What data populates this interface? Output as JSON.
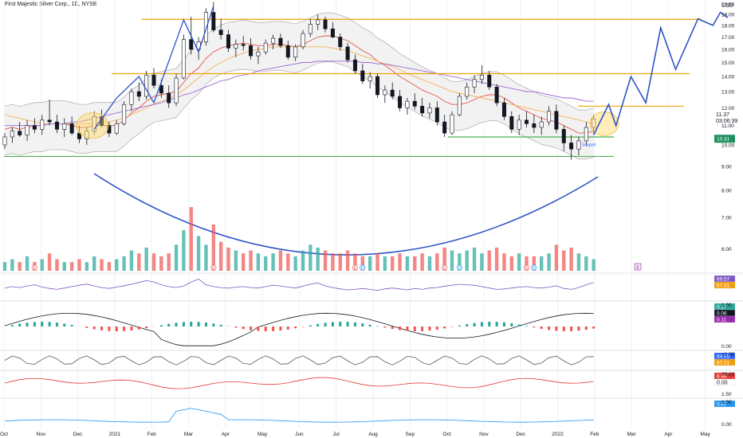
{
  "header": {
    "title": "First Majestic Silver Corp., 1D, NYSE",
    "currency": "USD"
  },
  "colors": {
    "up": "#26a69a",
    "down": "#ef5350",
    "orange": "#f0a30a",
    "green": "#4caf50",
    "blue": "#2e55c6",
    "purple": "#9c6ad6",
    "red_ma": "#e2574c",
    "orange_ma": "#f5b25c",
    "band": "#b5b5b5",
    "axis_text": "#131722",
    "cyan": "#2196f3"
  },
  "chart_data": {
    "type": "candlestick",
    "months": [
      "Oct",
      "Nov",
      "Dec",
      "2021",
      "Feb",
      "Mar",
      "Apr",
      "May",
      "Jun",
      "Jul",
      "Aug",
      "Sep",
      "Oct",
      "Nov",
      "Dec",
      "2022",
      "Feb",
      "Mar",
      "Apr",
      "May"
    ],
    "price_axis": {
      "ticks": [
        "20.00",
        "19.00",
        "18.00",
        "17.00",
        "16.00",
        "15.00",
        "14.00",
        "13.00",
        "12.00",
        "11.00",
        "10.00",
        "9.00",
        "8.00",
        "7.00",
        "6.00"
      ],
      "ylim": [
        5.6,
        20.4
      ],
      "scale": "log"
    },
    "key_levels": {
      "resistance_high": 18.55,
      "resistance_mid": 14.2,
      "resistance_low": 12.1,
      "support_upper": 10.4,
      "support_lower": 9.45
    },
    "price_tags": [
      {
        "label": "11.37",
        "sub": "03:06:39",
        "kind": "last"
      },
      {
        "label": "10.31",
        "kind": "green"
      }
    ],
    "candles": [
      [
        10.0,
        10.6,
        9.8,
        10.4
      ],
      [
        10.4,
        10.9,
        10.1,
        10.7
      ],
      [
        10.7,
        11.2,
        10.4,
        10.5
      ],
      [
        10.5,
        11.3,
        10.2,
        11.0
      ],
      [
        11.0,
        11.4,
        10.6,
        10.8
      ],
      [
        10.8,
        11.6,
        10.5,
        11.3
      ],
      [
        11.3,
        12.5,
        11.0,
        11.2
      ],
      [
        11.2,
        11.6,
        10.6,
        10.8
      ],
      [
        10.8,
        11.4,
        10.4,
        11.1
      ],
      [
        11.1,
        11.5,
        10.5,
        10.6
      ],
      [
        10.6,
        11.0,
        10.1,
        10.3
      ],
      [
        10.3,
        10.9,
        10.0,
        10.7
      ],
      [
        10.7,
        11.8,
        10.5,
        11.5
      ],
      [
        11.5,
        11.9,
        10.9,
        11.0
      ],
      [
        11.0,
        11.2,
        10.4,
        10.6
      ],
      [
        10.6,
        11.3,
        10.5,
        11.1
      ],
      [
        11.1,
        12.4,
        11.0,
        12.2
      ],
      [
        12.2,
        13.2,
        11.8,
        13.0
      ],
      [
        13.0,
        13.6,
        12.4,
        12.7
      ],
      [
        12.7,
        14.4,
        12.5,
        14.1
      ],
      [
        14.1,
        14.6,
        13.2,
        13.4
      ],
      [
        13.4,
        13.8,
        12.6,
        12.9
      ],
      [
        12.9,
        13.4,
        12.0,
        12.3
      ],
      [
        12.3,
        14.2,
        12.1,
        13.9
      ],
      [
        13.9,
        17.2,
        13.8,
        16.8
      ],
      [
        16.8,
        18.8,
        15.6,
        16.0
      ],
      [
        16.0,
        17.0,
        15.2,
        16.6
      ],
      [
        16.6,
        19.6,
        16.3,
        19.2
      ],
      [
        19.2,
        20.2,
        17.4,
        17.6
      ],
      [
        17.6,
        18.6,
        16.8,
        17.2
      ],
      [
        17.2,
        17.6,
        15.8,
        16.1
      ],
      [
        16.1,
        16.8,
        15.4,
        16.4
      ],
      [
        16.4,
        17.1,
        15.9,
        16.3
      ],
      [
        16.3,
        16.9,
        15.2,
        15.5
      ],
      [
        15.5,
        16.2,
        14.9,
        15.8
      ],
      [
        15.8,
        16.8,
        15.6,
        16.5
      ],
      [
        16.5,
        17.2,
        16.0,
        16.9
      ],
      [
        16.9,
        17.3,
        16.1,
        16.3
      ],
      [
        16.3,
        16.7,
        15.2,
        15.4
      ],
      [
        15.4,
        16.4,
        15.1,
        16.2
      ],
      [
        16.2,
        17.6,
        16.0,
        17.3
      ],
      [
        17.3,
        18.6,
        17.0,
        18.1
      ],
      [
        18.1,
        19.0,
        17.6,
        18.5
      ],
      [
        18.5,
        18.8,
        17.4,
        17.7
      ],
      [
        17.7,
        18.3,
        16.9,
        17.0
      ],
      [
        17.0,
        17.3,
        15.9,
        16.2
      ],
      [
        16.2,
        16.5,
        15.0,
        15.2
      ],
      [
        15.2,
        15.6,
        14.2,
        14.4
      ],
      [
        14.4,
        14.9,
        13.5,
        13.7
      ],
      [
        13.7,
        14.3,
        13.2,
        14.0
      ],
      [
        14.0,
        14.2,
        12.6,
        12.8
      ],
      [
        12.8,
        13.4,
        12.3,
        13.1
      ],
      [
        13.1,
        13.6,
        12.5,
        12.7
      ],
      [
        12.7,
        13.1,
        11.8,
        12.0
      ],
      [
        12.0,
        12.6,
        11.6,
        12.4
      ],
      [
        12.4,
        12.9,
        11.9,
        12.1
      ],
      [
        12.1,
        12.6,
        11.5,
        11.7
      ],
      [
        11.7,
        12.3,
        11.4,
        12.0
      ],
      [
        12.0,
        12.4,
        11.0,
        11.2
      ],
      [
        11.2,
        11.6,
        10.4,
        10.6
      ],
      [
        10.6,
        11.8,
        10.5,
        11.6
      ],
      [
        11.6,
        12.9,
        11.5,
        12.7
      ],
      [
        12.7,
        13.6,
        12.5,
        13.3
      ],
      [
        13.3,
        14.1,
        12.9,
        13.8
      ],
      [
        13.8,
        14.8,
        13.5,
        14.1
      ],
      [
        14.1,
        14.4,
        13.1,
        13.3
      ],
      [
        13.3,
        13.5,
        12.1,
        12.3
      ],
      [
        12.3,
        12.6,
        11.3,
        11.5
      ],
      [
        11.5,
        11.8,
        10.6,
        10.8
      ],
      [
        10.8,
        11.6,
        10.5,
        11.3
      ],
      [
        11.3,
        11.8,
        10.9,
        11.1
      ],
      [
        11.1,
        11.6,
        10.6,
        10.9
      ],
      [
        10.9,
        11.5,
        10.5,
        11.2
      ],
      [
        11.2,
        12.1,
        11.0,
        11.8
      ],
      [
        11.8,
        12.2,
        10.6,
        10.8
      ],
      [
        10.8,
        11.0,
        9.7,
        10.1
      ],
      [
        10.1,
        10.5,
        9.3,
        9.8
      ],
      [
        9.8,
        10.4,
        9.5,
        10.2
      ],
      [
        10.2,
        11.2,
        10.0,
        10.9
      ],
      [
        10.9,
        11.6,
        10.6,
        11.37
      ]
    ],
    "series": [
      {
        "values": [
          10.8,
          10.9,
          10.8,
          10.9,
          11.0,
          11.0,
          11.1,
          11.1,
          11.1,
          11.0,
          10.9,
          10.9,
          11.0,
          11.0,
          11.0,
          11.0,
          11.3,
          11.7,
          12.0,
          12.4,
          12.7,
          12.8,
          12.9,
          13.0,
          13.6,
          14.2,
          14.6,
          15.3,
          15.8,
          16.1,
          16.3,
          16.4,
          16.5,
          16.4,
          16.3,
          16.3,
          16.4,
          16.4,
          16.3,
          16.2,
          16.4,
          16.7,
          17.0,
          17.1,
          17.1,
          16.9,
          16.7,
          16.3,
          15.9,
          15.6,
          15.1,
          14.8,
          14.4,
          14.0,
          13.7,
          13.4,
          13.1,
          12.9,
          12.7,
          12.4,
          12.2,
          12.2,
          12.3,
          12.5,
          12.7,
          12.8,
          12.8,
          12.6,
          12.3,
          12.0,
          11.8,
          11.6,
          11.4,
          11.3,
          11.2,
          11.0,
          10.8,
          10.6,
          10.6,
          10.7
        ]
      },
      {
        "values": [
          11.6,
          11.5,
          11.4,
          11.3,
          11.2,
          11.1,
          11.1,
          11.1,
          11.1,
          11.1,
          11.1,
          11.1,
          11.1,
          11.2,
          11.2,
          11.3,
          11.4,
          11.6,
          11.8,
          12.0,
          12.2,
          12.4,
          12.6,
          12.8,
          13.1,
          13.5,
          13.9,
          14.3,
          14.7,
          15.0,
          15.3,
          15.5,
          15.7,
          15.9,
          16.0,
          16.1,
          16.2,
          16.2,
          16.2,
          16.2,
          16.2,
          16.2,
          16.2,
          16.2,
          16.1,
          16.0,
          15.9,
          15.7,
          15.5,
          15.3,
          15.1,
          14.9,
          14.7,
          14.5,
          14.2,
          14.0,
          13.8,
          13.6,
          13.4,
          13.2,
          13.0,
          12.9,
          12.8,
          12.7,
          12.6,
          12.5,
          12.4,
          12.3,
          12.2,
          12.1,
          12.0,
          11.9,
          11.8,
          11.7,
          11.6,
          11.5,
          11.4,
          11.3,
          11.2,
          11.1
        ]
      },
      {
        "values": [
          11.0,
          11.0,
          11.0,
          11.0,
          11.0,
          11.0,
          11.1,
          11.1,
          11.1,
          11.2,
          11.2,
          11.3,
          11.4,
          11.5,
          11.6,
          11.7,
          11.8,
          11.9,
          12.0,
          12.1,
          12.2,
          12.3,
          12.5,
          12.6,
          12.8,
          12.9,
          13.1,
          13.3,
          13.5,
          13.7,
          13.8,
          14.0,
          14.1,
          14.2,
          14.4,
          14.5,
          14.6,
          14.7,
          14.8,
          14.9,
          15.0,
          15.0,
          15.1,
          15.1,
          15.1,
          15.1,
          15.1,
          15.1,
          15.0,
          15.0,
          14.9,
          14.9,
          14.8,
          14.7,
          14.6,
          14.5,
          14.4,
          14.3,
          14.2,
          14.1,
          14.0,
          13.9,
          13.8,
          13.7,
          13.6,
          13.5,
          13.4,
          13.3,
          13.2,
          13.1,
          13.0,
          13.0,
          12.9,
          12.8,
          12.7,
          12.6,
          12.6,
          12.5,
          12.4,
          12.4
        ]
      }
    ],
    "projection": [
      [
        79,
        10.5
      ],
      [
        81,
        12.2
      ],
      [
        82,
        11.0
      ],
      [
        84,
        14.0
      ],
      [
        86,
        12.3
      ],
      [
        88,
        17.8
      ],
      [
        90,
        14.5
      ],
      [
        93,
        18.6
      ],
      [
        95,
        18.0
      ],
      [
        96,
        19.2
      ],
      [
        97,
        18.7
      ]
    ],
    "volume": [
      3,
      4,
      3,
      5,
      3,
      4,
      6,
      4,
      3,
      3,
      4,
      3,
      5,
      4,
      3,
      4,
      5,
      7,
      6,
      8,
      6,
      5,
      6,
      9,
      14,
      22,
      12,
      9,
      16,
      10,
      8,
      7,
      6,
      7,
      6,
      5,
      6,
      7,
      6,
      5,
      7,
      9,
      8,
      7,
      6,
      6,
      7,
      6,
      5,
      5,
      6,
      5,
      5,
      6,
      5,
      5,
      6,
      5,
      6,
      8,
      7,
      6,
      7,
      8,
      6,
      7,
      8,
      6,
      5,
      6,
      5,
      5,
      5,
      6,
      9,
      7,
      8,
      6,
      5,
      4
    ],
    "indicators": [
      {
        "name": "rsi",
        "tags": [
          "69.57",
          "57.31"
        ],
        "lines": [
          [
            45,
            52,
            48,
            55,
            60,
            50,
            44,
            40,
            46,
            52,
            58,
            63,
            55,
            48,
            44,
            50,
            56,
            62,
            70,
            78,
            72,
            60,
            52,
            48,
            55,
            72,
            85,
            60,
            52,
            48,
            45,
            50,
            52,
            48,
            46,
            52,
            58,
            55,
            50,
            46,
            54,
            62,
            68,
            55,
            48,
            42,
            38,
            40,
            44,
            40,
            36,
            42,
            46,
            42,
            38,
            44,
            40,
            46,
            48,
            54,
            58,
            62,
            60,
            58,
            52,
            46,
            40,
            42,
            46,
            50,
            52,
            48,
            46,
            50,
            56,
            44,
            40,
            48,
            60,
            69.57
          ]
        ]
      },
      {
        "name": "macd",
        "tags": [
          "0.17",
          "0.06",
          "0.11"
        ],
        "axis": [
          "1.00",
          "0.00"
        ]
      },
      {
        "name": "stoch",
        "tags": [
          "84.95",
          "87.21"
        ],
        "axis": [
          "+1.00"
        ]
      },
      {
        "name": "red_line",
        "tags": [
          "8.96",
          "0.00"
        ],
        "axis": [
          "20.00",
          "1.50"
        ]
      },
      {
        "name": "cyan_line",
        "tags": [
          "0.47"
        ],
        "axis": [
          "1.00",
          "0.00"
        ]
      }
    ],
    "events": [
      {
        "i": 4,
        "label": "E"
      },
      {
        "i": 28,
        "label": "E"
      },
      {
        "i": 47,
        "label": "E"
      },
      {
        "i": 48,
        "label": "D"
      },
      {
        "i": 59,
        "label": "E"
      },
      {
        "i": 61,
        "label": "D"
      },
      {
        "i": 70,
        "label": "E"
      },
      {
        "i": 71,
        "label": "D"
      }
    ],
    "annotation": "Support"
  }
}
